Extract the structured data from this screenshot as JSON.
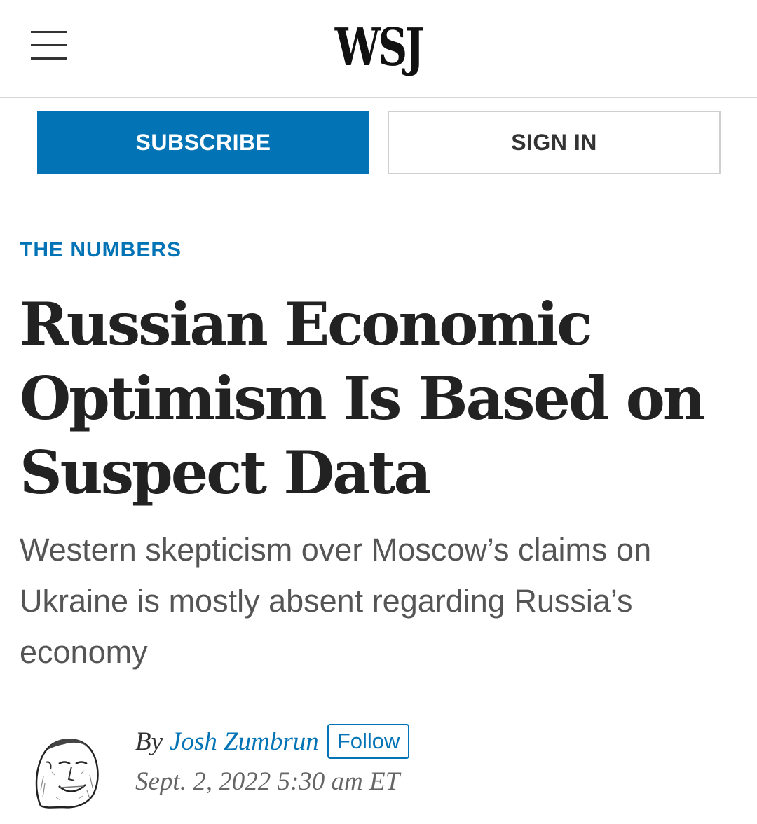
{
  "header": {
    "logo": "WSJ",
    "menu_icon": "hamburger-menu-icon"
  },
  "actions": {
    "subscribe_label": "SUBSCRIBE",
    "signin_label": "SIGN IN"
  },
  "article": {
    "section": "THE NUMBERS",
    "headline": "Russian Economic Optimism Is Based on Suspect Data",
    "dek": "Western skepticism over Moscow’s claims on Ukraine is mostly absent regarding Russia’s economy",
    "byline_prefix": "By",
    "author": "Josh Zumbrun",
    "follow_label": "Follow",
    "date": "Sept. 2, 2022 5:30 am ET"
  },
  "colors": {
    "brand_blue": "#0274b6",
    "headline": "#222222",
    "dek": "#555555"
  }
}
